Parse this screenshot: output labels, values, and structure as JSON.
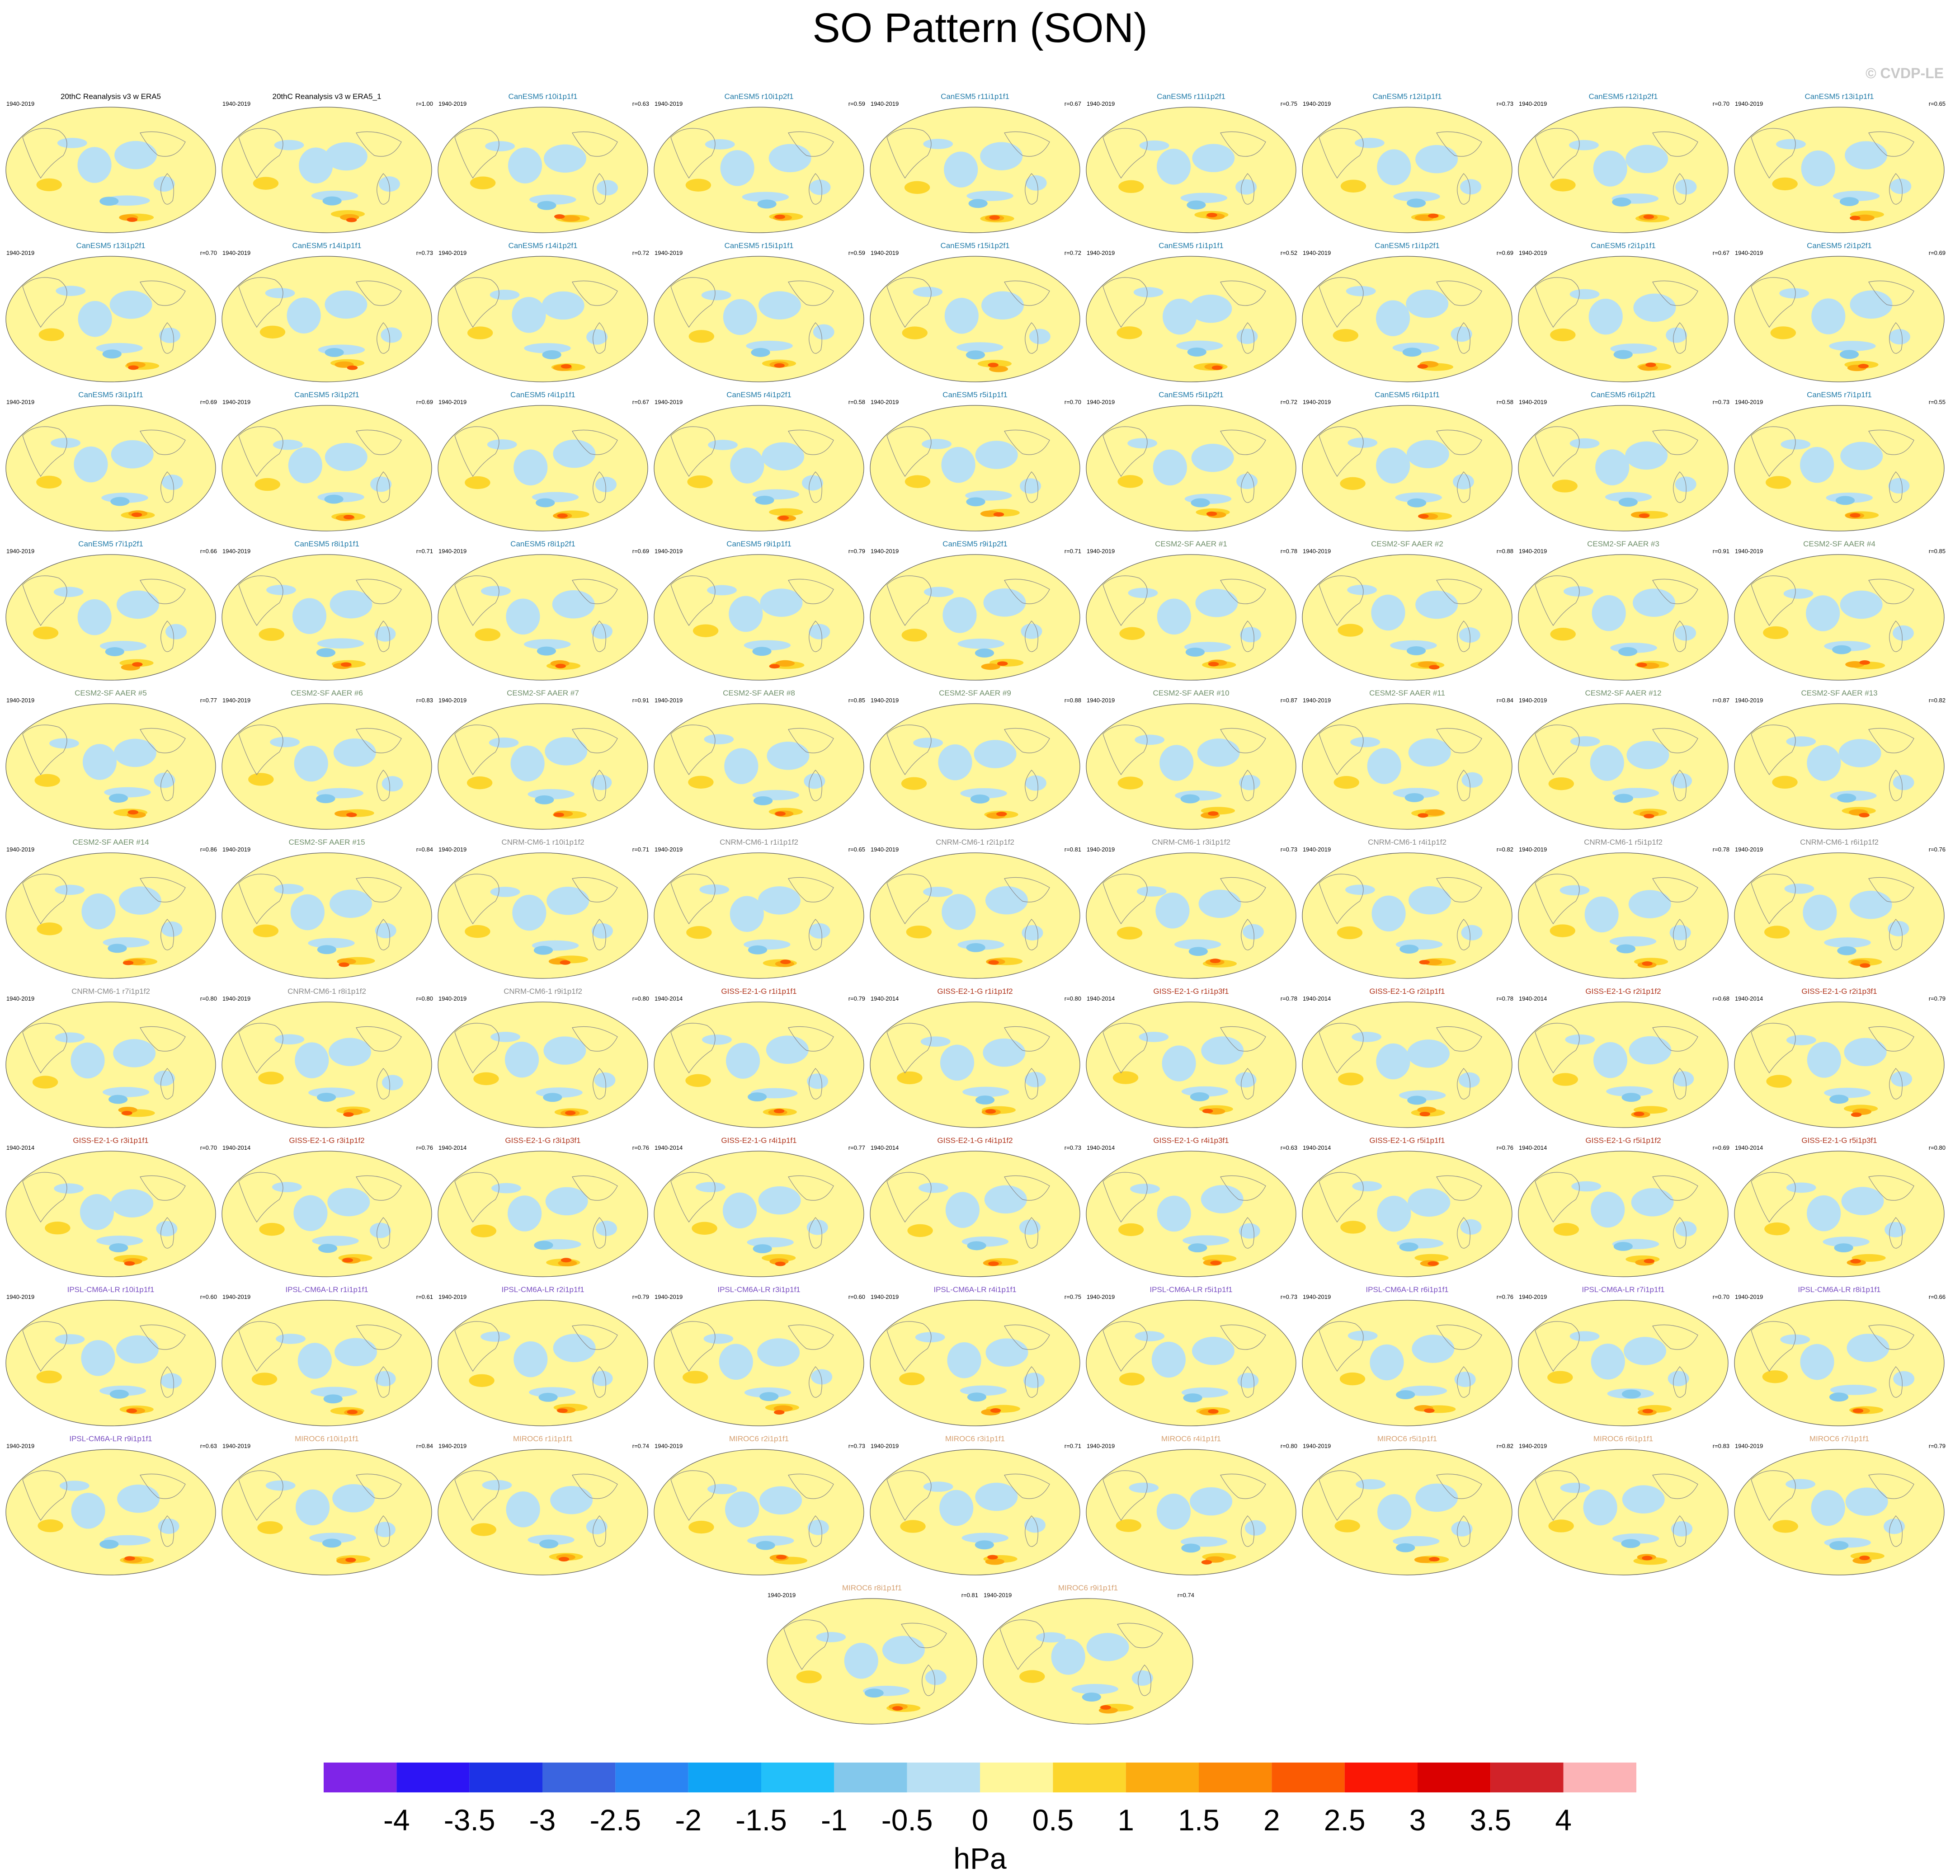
{
  "title": "SO Pattern (SON)",
  "copyright": "© CVDP-LE",
  "chart_data": {
    "type": "heatmap",
    "title": "SO Pattern (SON)",
    "units": "hPa",
    "colorbar": {
      "ticks": [
        "-4",
        "-3.5",
        "-3",
        "-2.5",
        "-2",
        "-1.5",
        "-1",
        "-0.5",
        "0",
        "0.5",
        "1",
        "1.5",
        "2",
        "2.5",
        "3",
        "3.5",
        "4"
      ],
      "colors": [
        "#7f24e8",
        "#2c14f5",
        "#1c32e6",
        "#3a64e0",
        "#2a84f3",
        "#0fa5f6",
        "#22c0fa",
        "#83c8ec",
        "#b8e0f4",
        "#fff79a",
        "#fcd62c",
        "#fcac10",
        "#fc8906",
        "#fb5a02",
        "#fb1604",
        "#da0000",
        "#d12228",
        "#fcb3b6"
      ]
    },
    "panels": [
      {
        "name": "20thC Reanalysis v3 w ERA5",
        "period": "1940-2019",
        "r": "",
        "group": "obs"
      },
      {
        "name": "20thC Reanalysis v3 w ERA5_1",
        "period": "1940-2019",
        "r": "r=1.00",
        "group": "obs"
      },
      {
        "name": "CanESM5 r10i1p1f1",
        "period": "1940-2019",
        "r": "r=0.63",
        "group": "CanESM5"
      },
      {
        "name": "CanESM5 r10i1p2f1",
        "period": "1940-2019",
        "r": "r=0.59",
        "group": "CanESM5"
      },
      {
        "name": "CanESM5 r11i1p1f1",
        "period": "1940-2019",
        "r": "r=0.67",
        "group": "CanESM5"
      },
      {
        "name": "CanESM5 r11i1p2f1",
        "period": "1940-2019",
        "r": "r=0.75",
        "group": "CanESM5"
      },
      {
        "name": "CanESM5 r12i1p1f1",
        "period": "1940-2019",
        "r": "r=0.73",
        "group": "CanESM5"
      },
      {
        "name": "CanESM5 r12i1p2f1",
        "period": "1940-2019",
        "r": "r=0.70",
        "group": "CanESM5"
      },
      {
        "name": "CanESM5 r13i1p1f1",
        "period": "1940-2019",
        "r": "r=0.65",
        "group": "CanESM5"
      },
      {
        "name": "CanESM5 r13i1p2f1",
        "period": "1940-2019",
        "r": "r=0.70",
        "group": "CanESM5"
      },
      {
        "name": "CanESM5 r14i1p1f1",
        "period": "1940-2019",
        "r": "r=0.73",
        "group": "CanESM5"
      },
      {
        "name": "CanESM5 r14i1p2f1",
        "period": "1940-2019",
        "r": "r=0.72",
        "group": "CanESM5"
      },
      {
        "name": "CanESM5 r15i1p1f1",
        "period": "1940-2019",
        "r": "r=0.59",
        "group": "CanESM5"
      },
      {
        "name": "CanESM5 r15i1p2f1",
        "period": "1940-2019",
        "r": "r=0.72",
        "group": "CanESM5"
      },
      {
        "name": "CanESM5 r1i1p1f1",
        "period": "1940-2019",
        "r": "r=0.52",
        "group": "CanESM5"
      },
      {
        "name": "CanESM5 r1i1p2f1",
        "period": "1940-2019",
        "r": "r=0.69",
        "group": "CanESM5"
      },
      {
        "name": "CanESM5 r2i1p1f1",
        "period": "1940-2019",
        "r": "r=0.67",
        "group": "CanESM5"
      },
      {
        "name": "CanESM5 r2i1p2f1",
        "period": "1940-2019",
        "r": "r=0.69",
        "group": "CanESM5"
      },
      {
        "name": "CanESM5 r3i1p1f1",
        "period": "1940-2019",
        "r": "r=0.69",
        "group": "CanESM5"
      },
      {
        "name": "CanESM5 r3i1p2f1",
        "period": "1940-2019",
        "r": "r=0.69",
        "group": "CanESM5"
      },
      {
        "name": "CanESM5 r4i1p1f1",
        "period": "1940-2019",
        "r": "r=0.67",
        "group": "CanESM5"
      },
      {
        "name": "CanESM5 r4i1p2f1",
        "period": "1940-2019",
        "r": "r=0.58",
        "group": "CanESM5"
      },
      {
        "name": "CanESM5 r5i1p1f1",
        "period": "1940-2019",
        "r": "r=0.70",
        "group": "CanESM5"
      },
      {
        "name": "CanESM5 r5i1p2f1",
        "period": "1940-2019",
        "r": "r=0.72",
        "group": "CanESM5"
      },
      {
        "name": "CanESM5 r6i1p1f1",
        "period": "1940-2019",
        "r": "r=0.58",
        "group": "CanESM5"
      },
      {
        "name": "CanESM5 r6i1p2f1",
        "period": "1940-2019",
        "r": "r=0.73",
        "group": "CanESM5"
      },
      {
        "name": "CanESM5 r7i1p1f1",
        "period": "1940-2019",
        "r": "r=0.55",
        "group": "CanESM5"
      },
      {
        "name": "CanESM5 r7i1p2f1",
        "period": "1940-2019",
        "r": "r=0.66",
        "group": "CanESM5"
      },
      {
        "name": "CanESM5 r8i1p1f1",
        "period": "1940-2019",
        "r": "r=0.71",
        "group": "CanESM5"
      },
      {
        "name": "CanESM5 r8i1p2f1",
        "period": "1940-2019",
        "r": "r=0.69",
        "group": "CanESM5"
      },
      {
        "name": "CanESM5 r9i1p1f1",
        "period": "1940-2019",
        "r": "r=0.79",
        "group": "CanESM5"
      },
      {
        "name": "CanESM5 r9i1p2f1",
        "period": "1940-2019",
        "r": "r=0.71",
        "group": "CanESM5"
      },
      {
        "name": "CESM2-SF AAER #1",
        "period": "1940-2019",
        "r": "r=0.78",
        "group": "CESM2"
      },
      {
        "name": "CESM2-SF AAER #2",
        "period": "1940-2019",
        "r": "r=0.88",
        "group": "CESM2"
      },
      {
        "name": "CESM2-SF AAER #3",
        "period": "1940-2019",
        "r": "r=0.91",
        "group": "CESM2"
      },
      {
        "name": "CESM2-SF AAER #4",
        "period": "1940-2019",
        "r": "r=0.85",
        "group": "CESM2"
      },
      {
        "name": "CESM2-SF AAER #5",
        "period": "1940-2019",
        "r": "r=0.77",
        "group": "CESM2"
      },
      {
        "name": "CESM2-SF AAER #6",
        "period": "1940-2019",
        "r": "r=0.83",
        "group": "CESM2"
      },
      {
        "name": "CESM2-SF AAER #7",
        "period": "1940-2019",
        "r": "r=0.91",
        "group": "CESM2"
      },
      {
        "name": "CESM2-SF AAER #8",
        "period": "1940-2019",
        "r": "r=0.85",
        "group": "CESM2"
      },
      {
        "name": "CESM2-SF AAER #9",
        "period": "1940-2019",
        "r": "r=0.88",
        "group": "CESM2"
      },
      {
        "name": "CESM2-SF AAER #10",
        "period": "1940-2019",
        "r": "r=0.87",
        "group": "CESM2"
      },
      {
        "name": "CESM2-SF AAER #11",
        "period": "1940-2019",
        "r": "r=0.84",
        "group": "CESM2"
      },
      {
        "name": "CESM2-SF AAER #12",
        "period": "1940-2019",
        "r": "r=0.87",
        "group": "CESM2"
      },
      {
        "name": "CESM2-SF AAER #13",
        "period": "1940-2019",
        "r": "r=0.82",
        "group": "CESM2"
      },
      {
        "name": "CESM2-SF AAER #14",
        "period": "1940-2019",
        "r": "r=0.86",
        "group": "CESM2"
      },
      {
        "name": "CESM2-SF AAER #15",
        "period": "1940-2019",
        "r": "r=0.84",
        "group": "CESM2"
      },
      {
        "name": "CNRM-CM6-1 r10i1p1f2",
        "period": "1940-2019",
        "r": "r=0.71",
        "group": "CNRM"
      },
      {
        "name": "CNRM-CM6-1 r1i1p1f2",
        "period": "1940-2019",
        "r": "r=0.65",
        "group": "CNRM"
      },
      {
        "name": "CNRM-CM6-1 r2i1p1f2",
        "period": "1940-2019",
        "r": "r=0.81",
        "group": "CNRM"
      },
      {
        "name": "CNRM-CM6-1 r3i1p1f2",
        "period": "1940-2019",
        "r": "r=0.73",
        "group": "CNRM"
      },
      {
        "name": "CNRM-CM6-1 r4i1p1f2",
        "period": "1940-2019",
        "r": "r=0.82",
        "group": "CNRM"
      },
      {
        "name": "CNRM-CM6-1 r5i1p1f2",
        "period": "1940-2019",
        "r": "r=0.78",
        "group": "CNRM"
      },
      {
        "name": "CNRM-CM6-1 r6i1p1f2",
        "period": "1940-2019",
        "r": "r=0.76",
        "group": "CNRM"
      },
      {
        "name": "CNRM-CM6-1 r7i1p1f2",
        "period": "1940-2019",
        "r": "r=0.80",
        "group": "CNRM"
      },
      {
        "name": "CNRM-CM6-1 r8i1p1f2",
        "period": "1940-2019",
        "r": "r=0.80",
        "group": "CNRM"
      },
      {
        "name": "CNRM-CM6-1 r9i1p1f2",
        "period": "1940-2019",
        "r": "r=0.80",
        "group": "CNRM"
      },
      {
        "name": "GISS-E2-1-G r1i1p1f1",
        "period": "1940-2014",
        "r": "r=0.79",
        "group": "GISS"
      },
      {
        "name": "GISS-E2-1-G r1i1p1f2",
        "period": "1940-2014",
        "r": "r=0.80",
        "group": "GISS"
      },
      {
        "name": "GISS-E2-1-G r1i1p3f1",
        "period": "1940-2014",
        "r": "r=0.78",
        "group": "GISS"
      },
      {
        "name": "GISS-E2-1-G r2i1p1f1",
        "period": "1940-2014",
        "r": "r=0.78",
        "group": "GISS"
      },
      {
        "name": "GISS-E2-1-G r2i1p1f2",
        "period": "1940-2014",
        "r": "r=0.68",
        "group": "GISS"
      },
      {
        "name": "GISS-E2-1-G r2i1p3f1",
        "period": "1940-2014",
        "r": "r=0.79",
        "group": "GISS"
      },
      {
        "name": "GISS-E2-1-G r3i1p1f1",
        "period": "1940-2014",
        "r": "r=0.70",
        "group": "GISS"
      },
      {
        "name": "GISS-E2-1-G r3i1p1f2",
        "period": "1940-2014",
        "r": "r=0.76",
        "group": "GISS"
      },
      {
        "name": "GISS-E2-1-G r3i1p3f1",
        "period": "1940-2014",
        "r": "r=0.76",
        "group": "GISS"
      },
      {
        "name": "GISS-E2-1-G r4i1p1f1",
        "period": "1940-2014",
        "r": "r=0.77",
        "group": "GISS"
      },
      {
        "name": "GISS-E2-1-G r4i1p1f2",
        "period": "1940-2014",
        "r": "r=0.73",
        "group": "GISS"
      },
      {
        "name": "GISS-E2-1-G r4i1p3f1",
        "period": "1940-2014",
        "r": "r=0.63",
        "group": "GISS"
      },
      {
        "name": "GISS-E2-1-G r5i1p1f1",
        "period": "1940-2014",
        "r": "r=0.76",
        "group": "GISS"
      },
      {
        "name": "GISS-E2-1-G r5i1p1f2",
        "period": "1940-2014",
        "r": "r=0.69",
        "group": "GISS"
      },
      {
        "name": "GISS-E2-1-G r5i1p3f1",
        "period": "1940-2014",
        "r": "r=0.80",
        "group": "GISS"
      },
      {
        "name": "IPSL-CM6A-LR r10i1p1f1",
        "period": "1940-2019",
        "r": "r=0.60",
        "group": "IPSL"
      },
      {
        "name": "IPSL-CM6A-LR r1i1p1f1",
        "period": "1940-2019",
        "r": "r=0.61",
        "group": "IPSL"
      },
      {
        "name": "IPSL-CM6A-LR r2i1p1f1",
        "period": "1940-2019",
        "r": "r=0.79",
        "group": "IPSL"
      },
      {
        "name": "IPSL-CM6A-LR r3i1p1f1",
        "period": "1940-2019",
        "r": "r=0.60",
        "group": "IPSL"
      },
      {
        "name": "IPSL-CM6A-LR r4i1p1f1",
        "period": "1940-2019",
        "r": "r=0.75",
        "group": "IPSL"
      },
      {
        "name": "IPSL-CM6A-LR r5i1p1f1",
        "period": "1940-2019",
        "r": "r=0.73",
        "group": "IPSL"
      },
      {
        "name": "IPSL-CM6A-LR r6i1p1f1",
        "period": "1940-2019",
        "r": "r=0.76",
        "group": "IPSL"
      },
      {
        "name": "IPSL-CM6A-LR r7i1p1f1",
        "period": "1940-2019",
        "r": "r=0.70",
        "group": "IPSL"
      },
      {
        "name": "IPSL-CM6A-LR r8i1p1f1",
        "period": "1940-2019",
        "r": "r=0.66",
        "group": "IPSL"
      },
      {
        "name": "IPSL-CM6A-LR r9i1p1f1",
        "period": "1940-2019",
        "r": "r=0.63",
        "group": "IPSL"
      },
      {
        "name": "MIROC6 r10i1p1f1",
        "period": "1940-2019",
        "r": "r=0.84",
        "group": "MIROC6"
      },
      {
        "name": "MIROC6 r1i1p1f1",
        "period": "1940-2019",
        "r": "r=0.74",
        "group": "MIROC6"
      },
      {
        "name": "MIROC6 r2i1p1f1",
        "period": "1940-2019",
        "r": "r=0.73",
        "group": "MIROC6"
      },
      {
        "name": "MIROC6 r3i1p1f1",
        "period": "1940-2019",
        "r": "r=0.71",
        "group": "MIROC6"
      },
      {
        "name": "MIROC6 r4i1p1f1",
        "period": "1940-2019",
        "r": "r=0.80",
        "group": "MIROC6"
      },
      {
        "name": "MIROC6 r5i1p1f1",
        "period": "1940-2019",
        "r": "r=0.82",
        "group": "MIROC6"
      },
      {
        "name": "MIROC6 r6i1p1f1",
        "period": "1940-2019",
        "r": "r=0.83",
        "group": "MIROC6"
      },
      {
        "name": "MIROC6 r7i1p1f1",
        "period": "1940-2019",
        "r": "r=0.79",
        "group": "MIROC6"
      },
      {
        "name": "MIROC6 r8i1p1f1",
        "period": "1940-2019",
        "r": "r=0.81",
        "group": "MIROC6"
      },
      {
        "name": "MIROC6 r9i1p1f1",
        "period": "1940-2019",
        "r": "r=0.74",
        "group": "MIROC6"
      }
    ],
    "group_colors": {
      "obs": "#000000",
      "CanESM5": "#1f7aa8",
      "CESM2": "#6f8f6a",
      "CNRM": "#8a8a8a",
      "GISS": "#b0341c",
      "IPSL": "#7a4fc2",
      "MIROC6": "#d6a070"
    }
  }
}
